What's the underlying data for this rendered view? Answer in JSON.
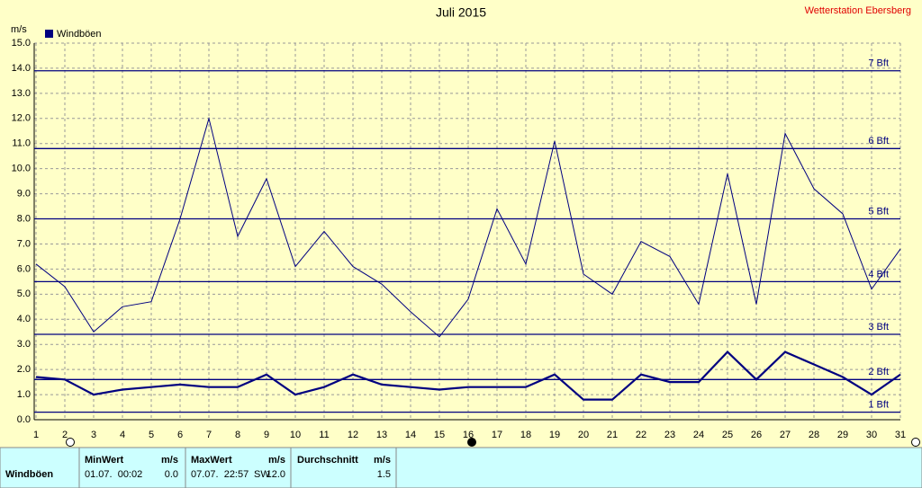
{
  "chart_data": {
    "type": "line",
    "title": "Juli 2015",
    "subtitle": "Wetterstation Ebersberg",
    "y_label": "m/s",
    "x": [
      1,
      2,
      3,
      4,
      5,
      6,
      7,
      8,
      9,
      10,
      11,
      12,
      13,
      14,
      15,
      16,
      17,
      18,
      19,
      20,
      21,
      22,
      23,
      24,
      25,
      26,
      27,
      28,
      29,
      30,
      31
    ],
    "xlim": [
      1,
      31
    ],
    "xticks": [
      1,
      2,
      3,
      4,
      5,
      6,
      7,
      8,
      9,
      10,
      11,
      12,
      13,
      14,
      15,
      16,
      17,
      18,
      19,
      20,
      21,
      22,
      23,
      24,
      25,
      26,
      27,
      28,
      29,
      30,
      31
    ],
    "ylim": [
      0,
      15
    ],
    "yticks": [
      {
        "value": 0,
        "label": "0.0"
      },
      {
        "value": 1,
        "label": "1.0"
      },
      {
        "value": 2,
        "label": "2.0"
      },
      {
        "value": 3,
        "label": "3.0"
      },
      {
        "value": 4,
        "label": "4.0"
      },
      {
        "value": 5,
        "label": "5.0"
      },
      {
        "value": 6,
        "label": "6.0"
      },
      {
        "value": 7,
        "label": "7.0"
      },
      {
        "value": 8,
        "label": "8.0"
      },
      {
        "value": 9,
        "label": "9.0"
      },
      {
        "value": 10,
        "label": "10.0"
      },
      {
        "value": 11,
        "label": "11.0"
      },
      {
        "value": 12,
        "label": "12.0"
      },
      {
        "value": 13,
        "label": "13.0"
      },
      {
        "value": 14,
        "label": "14.0"
      },
      {
        "value": 15,
        "label": "15.0"
      }
    ],
    "grid": true,
    "series": [
      {
        "name": "Windböen",
        "color": "#000080",
        "values": [
          6.2,
          5.3,
          3.5,
          4.5,
          4.7,
          8.0,
          12.0,
          7.3,
          9.6,
          6.1,
          7.5,
          6.1,
          5.4,
          4.3,
          3.3,
          4.8,
          8.4,
          6.2,
          11.1,
          5.8,
          5.0,
          7.1,
          6.5,
          4.6,
          9.8,
          4.6,
          11.4,
          9.2,
          8.2,
          5.2,
          6.8
        ]
      },
      {
        "color": "#000080",
        "values": [
          1.7,
          1.6,
          1.0,
          1.2,
          1.3,
          1.4,
          1.3,
          1.3,
          1.8,
          1.0,
          1.3,
          1.8,
          1.4,
          1.3,
          1.2,
          1.3,
          1.3,
          1.3,
          1.8,
          0.8,
          0.8,
          1.8,
          1.5,
          1.5,
          2.7,
          1.6,
          2.7,
          2.2,
          1.7,
          1.0,
          1.8
        ]
      }
    ],
    "reference_lines": [
      {
        "value": 0.3,
        "label": "1 Bft"
      },
      {
        "value": 1.6,
        "label": "2 Bft"
      },
      {
        "value": 3.4,
        "label": "3 Bft"
      },
      {
        "value": 5.5,
        "label": "4 Bft"
      },
      {
        "value": 8.0,
        "label": "5 Bft"
      },
      {
        "value": 10.8,
        "label": "6 Bft"
      },
      {
        "value": 13.9,
        "label": "7 Bft"
      }
    ]
  },
  "table": {
    "header": [
      "MinWert",
      "m/s",
      "MaxWert",
      "m/s",
      "Durchschnitt",
      "m/s"
    ],
    "rows": [
      [
        "Windböen",
        "01.07.  00:02",
        "0.0",
        "07.07.  22:57",
        "SW",
        "12.0",
        "1.5"
      ]
    ]
  }
}
